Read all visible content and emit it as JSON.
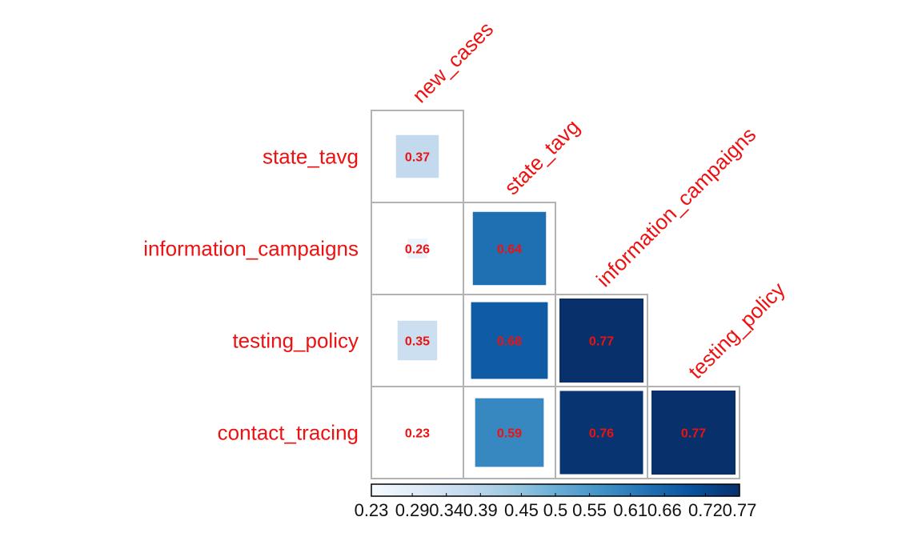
{
  "chart_data": {
    "type": "heatmap",
    "subtype": "correlation-matrix-lower-triangle",
    "variables": [
      "new_cases",
      "state_tavg",
      "information_campaigns",
      "testing_policy",
      "contact_tracing"
    ],
    "column_labels": [
      "new_cases",
      "state_tavg",
      "information_campaigns",
      "testing_policy"
    ],
    "row_labels": [
      "state_tavg",
      "information_campaigns",
      "testing_policy",
      "contact_tracing"
    ],
    "cells": [
      {
        "row": "state_tavg",
        "col": "new_cases",
        "value": 0.37,
        "label": "0.37"
      },
      {
        "row": "information_campaigns",
        "col": "new_cases",
        "value": 0.26,
        "label": "0.26"
      },
      {
        "row": "information_campaigns",
        "col": "state_tavg",
        "value": 0.64,
        "label": "0.64"
      },
      {
        "row": "testing_policy",
        "col": "new_cases",
        "value": 0.35,
        "label": "0.35"
      },
      {
        "row": "testing_policy",
        "col": "state_tavg",
        "value": 0.68,
        "label": "0.68"
      },
      {
        "row": "testing_policy",
        "col": "information_campaigns",
        "value": 0.77,
        "label": "0.77"
      },
      {
        "row": "contact_tracing",
        "col": "new_cases",
        "value": 0.23,
        "label": "0.23"
      },
      {
        "row": "contact_tracing",
        "col": "state_tavg",
        "value": 0.59,
        "label": "0.59"
      },
      {
        "row": "contact_tracing",
        "col": "information_campaigns",
        "value": 0.76,
        "label": "0.76"
      },
      {
        "row": "contact_tracing",
        "col": "testing_policy",
        "value": 0.77,
        "label": "0.77"
      }
    ],
    "color_scale": {
      "min": 0.23,
      "max": 0.77,
      "palette": "Blues",
      "stops": [
        "#f7fbff",
        "#deebf7",
        "#c6dbef",
        "#9ecae1",
        "#6baed6",
        "#4292c6",
        "#2171b5",
        "#08519c",
        "#08306b"
      ]
    },
    "colorbar_ticks": [
      "0.23",
      "0.29",
      "0.34",
      "0.39",
      "0.45",
      "0.5",
      "0.55",
      "0.61",
      "0.66",
      "0.72",
      "0.77"
    ],
    "colorbar_tick_values": [
      0.23,
      0.29,
      0.34,
      0.39,
      0.45,
      0.5,
      0.55,
      0.61,
      0.66,
      0.72,
      0.77
    ],
    "legend_position": "bottom",
    "label_color": "#ee1111",
    "grid": true
  }
}
